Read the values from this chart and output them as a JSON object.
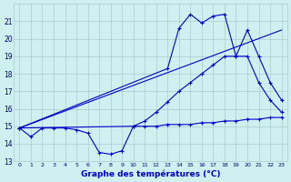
{
  "xlabel": "Graphe des températures (°C)",
  "xlim": [
    -0.5,
    23.5
  ],
  "ylim": [
    13,
    22
  ],
  "yticks": [
    13,
    14,
    15,
    16,
    17,
    18,
    19,
    20,
    21
  ],
  "xticks": [
    0,
    1,
    2,
    3,
    4,
    5,
    6,
    7,
    8,
    9,
    10,
    11,
    12,
    13,
    14,
    15,
    16,
    17,
    18,
    19,
    20,
    21,
    22,
    23
  ],
  "bg_color": "#cff0f0",
  "grid_color": "#aacccc",
  "line_color": "#0000cc",
  "line1_x": [
    0,
    1,
    2,
    3,
    4,
    5,
    6,
    7,
    8,
    9,
    10,
    11,
    12,
    13,
    14,
    15,
    16,
    17,
    18,
    19,
    20,
    21,
    22,
    23
  ],
  "line1_y": [
    14.9,
    14.4,
    14.9,
    14.9,
    14.9,
    14.8,
    14.6,
    13.5,
    13.4,
    13.6,
    15.0,
    15.0,
    15.0,
    15.1,
    15.1,
    15.1,
    15.2,
    15.2,
    15.3,
    15.3,
    15.4,
    15.4,
    15.5,
    15.5
  ],
  "line2_x": [
    0,
    13,
    14,
    15,
    16,
    17,
    18,
    19,
    20,
    21,
    22,
    23
  ],
  "line2_y": [
    14.9,
    18.3,
    20.6,
    21.4,
    20.9,
    21.3,
    21.4,
    19.0,
    20.5,
    19.0,
    17.5,
    16.5
  ],
  "line3_x": [
    0,
    10,
    11,
    12,
    13,
    14,
    15,
    16,
    17,
    18,
    19,
    20,
    21,
    22,
    23
  ],
  "line3_y": [
    14.9,
    15.0,
    15.3,
    15.8,
    16.4,
    17.0,
    17.5,
    18.0,
    18.5,
    19.0,
    19.0,
    19.0,
    17.5,
    16.5,
    15.8
  ],
  "line4_x": [
    0,
    23
  ],
  "line4_y": [
    14.9,
    20.5
  ]
}
